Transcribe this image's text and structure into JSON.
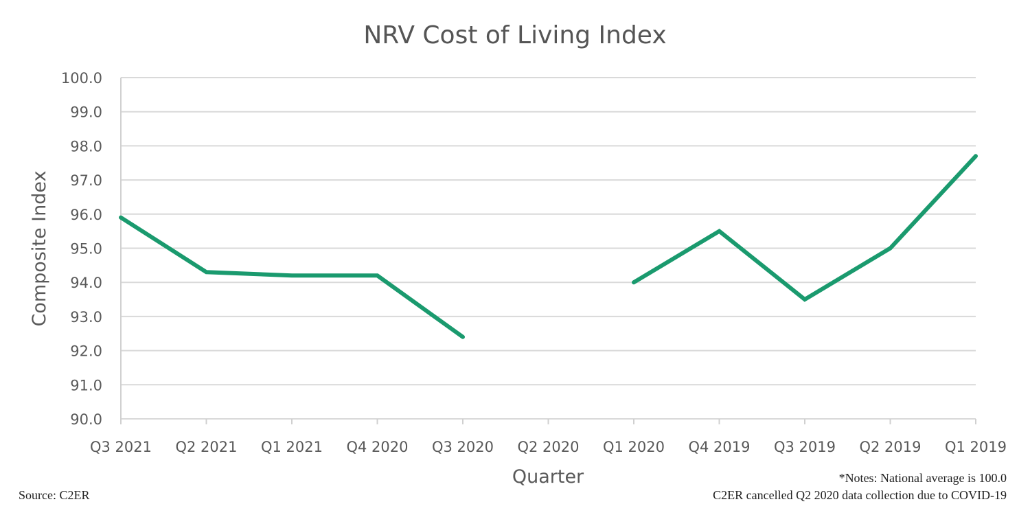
{
  "chart_data": {
    "type": "line",
    "title": "NRV Cost of Living Index",
    "xlabel": "Quarter",
    "ylabel": "Composite Index",
    "ylim": [
      90.0,
      100.0
    ],
    "yticks": [
      "90.0",
      "91.0",
      "92.0",
      "93.0",
      "94.0",
      "95.0",
      "96.0",
      "97.0",
      "98.0",
      "99.0",
      "100.0"
    ],
    "grid": true,
    "legend": "none",
    "categories": [
      "Q3 2021",
      "Q2 2021",
      "Q1 2021",
      "Q4 2020",
      "Q3 2020",
      "Q2 2020",
      "Q1 2020",
      "Q4 2019",
      "Q3 2019",
      "Q2 2019",
      "Q1 2019"
    ],
    "series": [
      {
        "name": "Composite Index",
        "color": "#1a9a6e",
        "values": [
          95.9,
          94.3,
          94.2,
          94.2,
          92.4,
          null,
          94.0,
          95.5,
          93.5,
          95.0,
          97.7
        ]
      }
    ],
    "annotations": {
      "source": "Source: C2ER",
      "note_line1": "*Notes: National average is 100.0",
      "note_line2": "C2ER cancelled Q2 2020 data collection due to COVID-19"
    }
  }
}
